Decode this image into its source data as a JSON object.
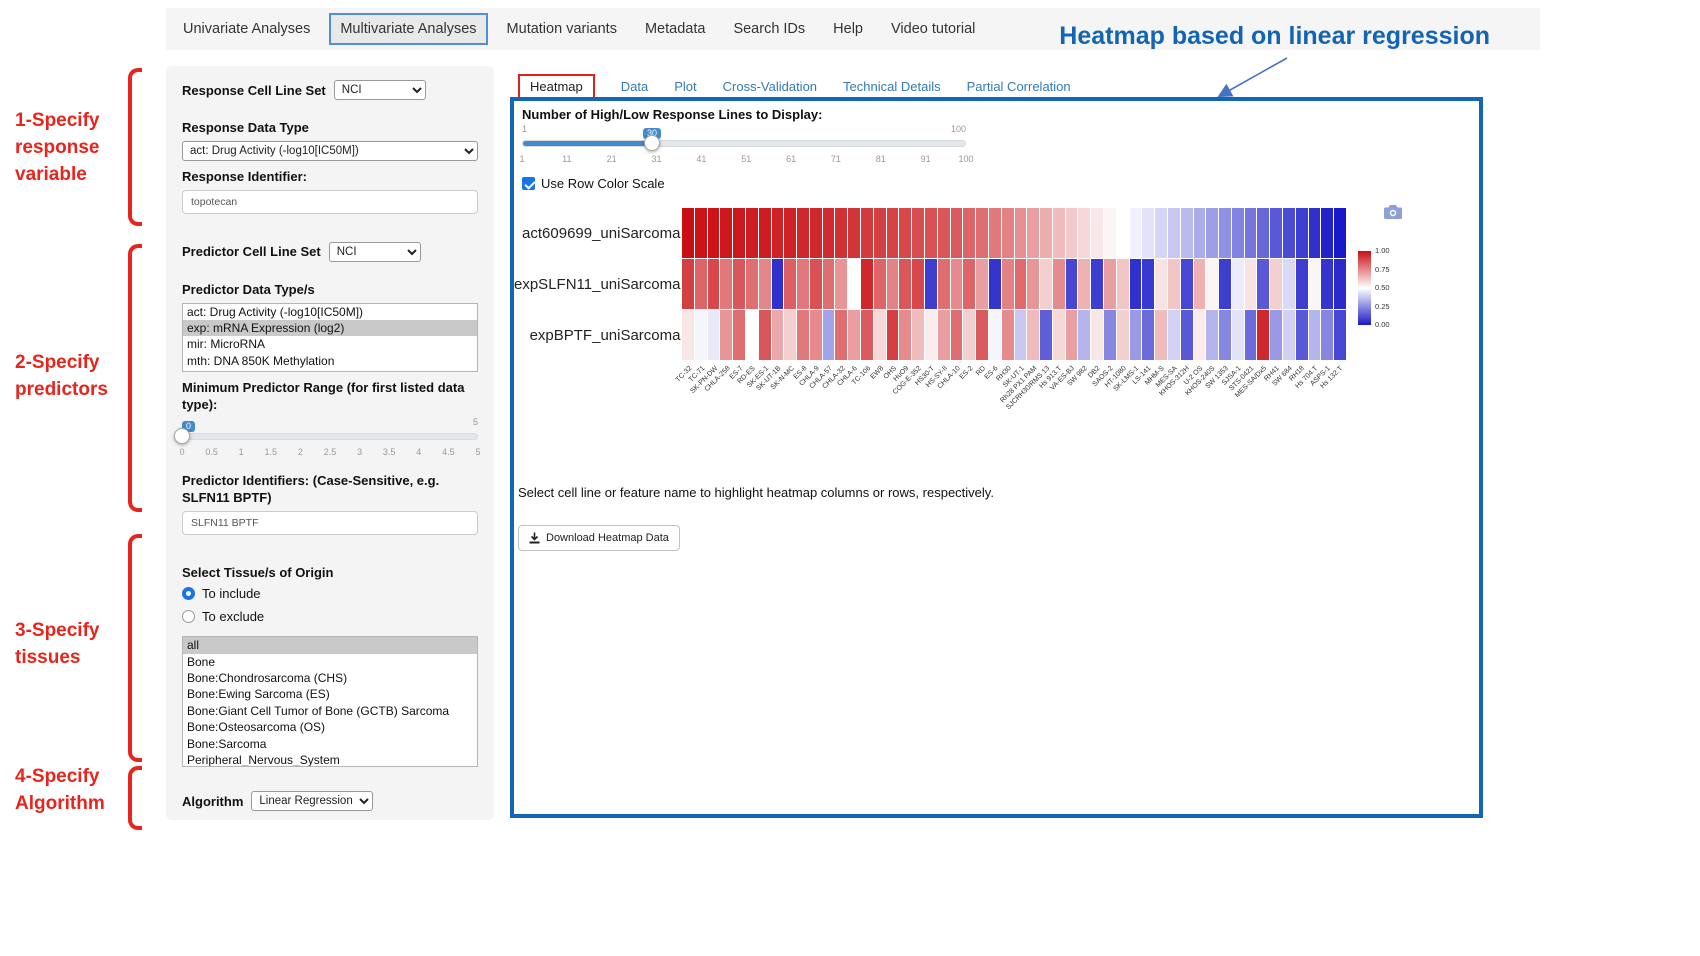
{
  "nav": {
    "items": [
      {
        "label": "Univariate Analyses",
        "active": false
      },
      {
        "label": "Multivariate Analyses",
        "active": true
      },
      {
        "label": "Mutation variants",
        "active": false
      },
      {
        "label": "Metadata",
        "active": false
      },
      {
        "label": "Search IDs",
        "active": false
      },
      {
        "label": "Help",
        "active": false
      },
      {
        "label": "Video tutorial",
        "active": false
      }
    ]
  },
  "annotations": {
    "heading": "Heatmap based on linear regression",
    "steps": [
      {
        "label": "1-Specify response variable"
      },
      {
        "label": "2-Specify predictors"
      },
      {
        "label": "3-Specify tissues"
      },
      {
        "label": "4-Specify Algorithm"
      }
    ]
  },
  "sidebar": {
    "response_cell_line_set_label": "Response Cell Line Set",
    "response_cell_line_set_value": "NCI",
    "response_data_type_label": "Response Data Type",
    "response_data_type_value": "act: Drug Activity (-log10[IC50M])",
    "response_identifier_label": "Response Identifier:",
    "response_identifier_value": "topotecan",
    "predictor_cell_line_set_label": "Predictor Cell Line Set",
    "predictor_cell_line_set_value": "NCI",
    "predictor_data_types_label": "Predictor Data Type/s",
    "predictor_data_types_options": [
      {
        "label": "act: Drug Activity (-log10[IC50M])",
        "selected": false
      },
      {
        "label": "exp: mRNA Expression (log2)",
        "selected": true
      },
      {
        "label": "mir: MicroRNA",
        "selected": false
      },
      {
        "label": "mth: DNA 850K Methylation",
        "selected": false
      }
    ],
    "min_predictor_range_label": "Minimum Predictor Range (for first listed data type):",
    "min_predictor_range": {
      "value": "0",
      "max_label": "5",
      "ticks": [
        "0",
        "0.5",
        "1",
        "1.5",
        "2",
        "2.5",
        "3",
        "3.5",
        "4",
        "4.5",
        "5"
      ]
    },
    "predictor_identifiers_label": "Predictor Identifiers: (Case-Sensitive, e.g. SLFN11 BPTF)",
    "predictor_identifiers_value": "SLFN11 BPTF",
    "tissue_label": "Select Tissue/s of Origin",
    "tissue_radio": [
      {
        "label": "To include",
        "checked": true
      },
      {
        "label": "To exclude",
        "checked": false
      }
    ],
    "tissue_options": [
      {
        "label": "all",
        "selected": true
      },
      {
        "label": "Bone",
        "selected": false
      },
      {
        "label": "Bone:Chondrosarcoma (CHS)",
        "selected": false
      },
      {
        "label": "Bone:Ewing Sarcoma (ES)",
        "selected": false
      },
      {
        "label": "Bone:Giant Cell Tumor of Bone (GCTB) Sarcoma",
        "selected": false
      },
      {
        "label": "Bone:Osteosarcoma (OS)",
        "selected": false
      },
      {
        "label": "Bone:Sarcoma",
        "selected": false
      },
      {
        "label": "Peripheral_Nervous_System",
        "selected": false
      }
    ],
    "algorithm_label": "Algorithm",
    "algorithm_value": "Linear Regression"
  },
  "main": {
    "tabs": [
      {
        "label": "Heatmap",
        "active": true
      },
      {
        "label": "Data",
        "active": false
      },
      {
        "label": "Plot",
        "active": false
      },
      {
        "label": "Cross-Validation",
        "active": false
      },
      {
        "label": "Technical Details",
        "active": false
      },
      {
        "label": "Partial Correlation",
        "active": false
      }
    ],
    "slider_label": "Number of High/Low Response Lines to Display:",
    "slider": {
      "value": "30",
      "min_label": "1",
      "max_label": "100",
      "ticks": [
        "1",
        "11",
        "21",
        "31",
        "41",
        "51",
        "61",
        "71",
        "81",
        "91",
        "100"
      ]
    },
    "row_color_scale_label": "Use Row Color Scale",
    "row_color_scale_checked": true,
    "hint": "Select cell line or feature name to highlight heatmap columns or rows, respectively.",
    "download_button": "Download Heatmap Data"
  },
  "chart_data": {
    "type": "heatmap",
    "rows": [
      "act609699_uniSarcoma",
      "expSLFN11_uniSarcoma",
      "expBPTF_uniSarcoma"
    ],
    "columns": [
      "TC-32",
      "TC-71",
      "SK-PN-DW",
      "CHLA-258",
      "ES-7",
      "RD-ES",
      "SK-ES-1",
      "SK-UT-1B",
      "SK-N-MC",
      "ES-8",
      "CHLA-9",
      "CHLA-57",
      "CHLA-32",
      "CHLA-6",
      "TC-106",
      "EW8",
      "OHS",
      "HuO9",
      "COG-E-352",
      "HS30-T",
      "HS-SY-II",
      "CHLA-10",
      "ES-2",
      "RD",
      "ES-6",
      "RH30",
      "SK-UT-1",
      "Rh28 PX1 PAM",
      "SJCRH30/RMS 13",
      "Hs 913.T",
      "VA-ES-BJ",
      "SW 982",
      "DB2",
      "SAOS-2",
      "HT-1080",
      "SK-LMS-1",
      "LS-141",
      "MHM-S",
      "MES-SA",
      "KHOS-312H",
      "U-2 OS",
      "KHOS-240S",
      "SW 1353",
      "SJSA-1",
      "STS-0421",
      "MES-SA/Dx5",
      "RH41",
      "SW 684",
      "RH18",
      "Hs 704.T",
      "ASPS-1",
      "Hs 132.T"
    ],
    "values": [
      [
        1.0,
        0.99,
        0.99,
        0.98,
        0.98,
        0.97,
        0.97,
        0.96,
        0.96,
        0.95,
        0.95,
        0.94,
        0.93,
        0.92,
        0.91,
        0.9,
        0.89,
        0.88,
        0.87,
        0.86,
        0.85,
        0.84,
        0.82,
        0.8,
        0.78,
        0.76,
        0.73,
        0.7,
        0.67,
        0.64,
        0.61,
        0.58,
        0.55,
        0.52,
        0.5,
        0.47,
        0.44,
        0.41,
        0.38,
        0.35,
        0.32,
        0.29,
        0.26,
        0.23,
        0.2,
        0.17,
        0.14,
        0.11,
        0.08,
        0.05,
        0.02,
        0.0
      ],
      [
        0.9,
        0.82,
        0.88,
        0.78,
        0.85,
        0.8,
        0.75,
        0.05,
        0.83,
        0.78,
        0.86,
        0.8,
        0.72,
        0.5,
        0.95,
        0.82,
        0.76,
        0.85,
        0.88,
        0.08,
        0.8,
        0.74,
        0.82,
        0.7,
        0.06,
        0.76,
        0.81,
        0.72,
        0.6,
        0.74,
        0.1,
        0.66,
        0.08,
        0.7,
        0.62,
        0.05,
        0.07,
        0.56,
        0.62,
        0.1,
        0.66,
        0.52,
        0.08,
        0.46,
        0.56,
        0.14,
        0.6,
        0.42,
        0.08,
        0.52,
        0.06,
        0.04
      ],
      [
        0.55,
        0.48,
        0.45,
        0.72,
        0.8,
        0.5,
        0.85,
        0.68,
        0.6,
        0.78,
        0.74,
        0.3,
        0.8,
        0.7,
        0.84,
        0.58,
        0.9,
        0.74,
        0.64,
        0.54,
        0.7,
        0.8,
        0.6,
        0.84,
        0.48,
        0.74,
        0.38,
        0.64,
        0.15,
        0.58,
        0.7,
        0.34,
        0.55,
        0.24,
        0.6,
        0.28,
        0.18,
        0.64,
        0.4,
        0.14,
        0.54,
        0.34,
        0.24,
        0.44,
        0.18,
        0.95,
        0.28,
        0.4,
        0.14,
        0.34,
        0.24,
        0.1
      ]
    ],
    "colorbar_ticks": [
      "1.00",
      "0.75",
      "0.50",
      "0.25",
      "0.00"
    ],
    "colorscale": {
      "low": "#1919c8",
      "mid": "#ffffff",
      "high": "#ca0f14",
      "domain": [
        0,
        1
      ]
    },
    "legend_position": "right",
    "xlabel": "",
    "ylabel": "",
    "title": ""
  }
}
